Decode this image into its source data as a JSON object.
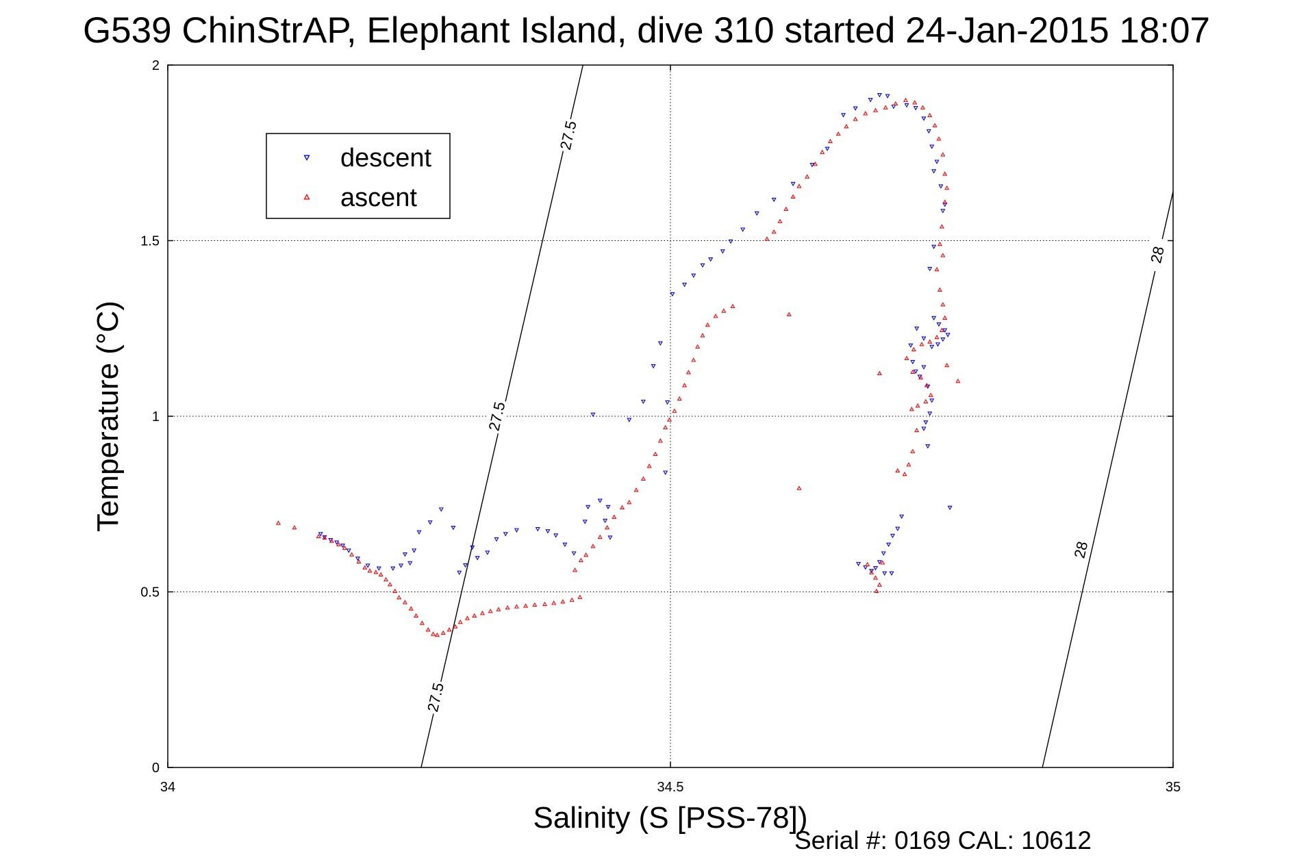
{
  "chart_data": {
    "type": "scatter",
    "title": "G539 ChinStrAP, Elephant Island, dive 310 started 24-Jan-2015 18:07",
    "xlabel": "Salinity (S [PSS-78])",
    "ylabel": "Temperature (°C)",
    "xlim": [
      34,
      35
    ],
    "ylim": [
      0,
      2
    ],
    "x_ticks": [
      34,
      34.5,
      35
    ],
    "x_tick_labels": [
      "34",
      "34.5",
      "35"
    ],
    "y_ticks": [
      0,
      0.5,
      1,
      1.5,
      2
    ],
    "y_tick_labels": [
      "0",
      "0.5",
      "1",
      "1.5",
      "2"
    ],
    "grid": true,
    "legend_position": "top-left",
    "footer": "Serial #: 0169 CAL: 10612",
    "series": [
      {
        "name": "descent",
        "color": "#0000ff",
        "marker": "triangle-down",
        "points": [
          [
            34.152,
            0.665
          ],
          [
            34.156,
            0.656
          ],
          [
            34.162,
            0.648
          ],
          [
            34.168,
            0.641
          ],
          [
            34.174,
            0.632
          ],
          [
            34.18,
            0.618
          ],
          [
            34.189,
            0.595
          ],
          [
            34.199,
            0.575
          ],
          [
            34.21,
            0.567
          ],
          [
            34.224,
            0.567
          ],
          [
            34.232,
            0.575
          ],
          [
            34.241,
            0.582
          ],
          [
            34.236,
            0.607
          ],
          [
            34.245,
            0.618
          ],
          [
            34.25,
            0.67
          ],
          [
            34.261,
            0.698
          ],
          [
            34.272,
            0.735
          ],
          [
            34.284,
            0.683
          ],
          [
            34.29,
            0.555
          ],
          [
            34.296,
            0.576
          ],
          [
            34.303,
            0.627
          ],
          [
            34.308,
            0.597
          ],
          [
            34.318,
            0.612
          ],
          [
            34.327,
            0.65
          ],
          [
            34.336,
            0.665
          ],
          [
            34.347,
            0.676
          ],
          [
            34.368,
            0.679
          ],
          [
            34.378,
            0.673
          ],
          [
            34.386,
            0.661
          ],
          [
            34.395,
            0.635
          ],
          [
            34.404,
            0.61
          ],
          [
            34.415,
            0.7
          ],
          [
            34.418,
            0.742
          ],
          [
            34.43,
            0.76
          ],
          [
            34.438,
            0.742
          ],
          [
            34.435,
            0.703
          ],
          [
            34.44,
            0.655
          ],
          [
            34.423,
            1.005
          ],
          [
            34.459,
            0.99
          ],
          [
            34.473,
            1.042
          ],
          [
            34.483,
            1.143
          ],
          [
            34.49,
            1.208
          ],
          [
            34.495,
            0.84
          ],
          [
            34.497,
            1.04
          ],
          [
            34.502,
            1.348
          ],
          [
            34.514,
            1.375
          ],
          [
            34.523,
            1.401
          ],
          [
            34.532,
            1.43
          ],
          [
            34.54,
            1.447
          ],
          [
            34.552,
            1.47
          ],
          [
            34.56,
            1.498
          ],
          [
            34.572,
            1.532
          ],
          [
            34.586,
            1.578
          ],
          [
            34.603,
            1.617
          ],
          [
            34.622,
            1.662
          ],
          [
            34.641,
            1.716
          ],
          [
            34.656,
            1.762
          ],
          [
            34.672,
            1.858
          ],
          [
            34.684,
            1.877
          ],
          [
            34.699,
            1.901
          ],
          [
            34.708,
            1.915
          ],
          [
            34.716,
            1.912
          ],
          [
            34.722,
            1.882
          ],
          [
            34.735,
            1.886
          ],
          [
            34.744,
            1.878
          ],
          [
            34.752,
            1.848
          ],
          [
            34.757,
            1.812
          ],
          [
            34.76,
            1.768
          ],
          [
            34.765,
            1.725
          ],
          [
            34.762,
            1.698
          ],
          [
            34.769,
            1.655
          ],
          [
            34.773,
            1.603
          ],
          [
            34.771,
            1.585
          ],
          [
            34.762,
            1.483
          ],
          [
            34.758,
            1.42
          ],
          [
            34.762,
            1.28
          ],
          [
            34.767,
            1.262
          ],
          [
            34.773,
            1.245
          ],
          [
            34.776,
            1.232
          ],
          [
            34.771,
            1.219
          ],
          [
            34.766,
            1.205
          ],
          [
            34.76,
            1.198
          ],
          [
            34.752,
            1.222
          ],
          [
            34.745,
            1.25
          ],
          [
            34.739,
            1.202
          ],
          [
            34.741,
            1.155
          ],
          [
            34.744,
            1.128
          ],
          [
            34.748,
            1.113
          ],
          [
            34.752,
            1.14
          ],
          [
            34.756,
            1.085
          ],
          [
            34.76,
            1.045
          ],
          [
            34.758,
            1.008
          ],
          [
            34.754,
            0.983
          ],
          [
            34.752,
            0.965
          ],
          [
            34.756,
            0.915
          ],
          [
            34.778,
            0.74
          ],
          [
            34.73,
            0.715
          ],
          [
            34.726,
            0.68
          ],
          [
            34.721,
            0.66
          ],
          [
            34.717,
            0.635
          ],
          [
            34.712,
            0.61
          ],
          [
            34.708,
            0.585
          ],
          [
            34.704,
            0.568
          ],
          [
            34.7,
            0.56
          ],
          [
            34.694,
            0.57
          ],
          [
            34.687,
            0.58
          ],
          [
            34.713,
            0.553
          ],
          [
            34.72,
            0.553
          ]
        ]
      },
      {
        "name": "ascent",
        "color": "#ff0000",
        "marker": "triangle-up",
        "points": [
          [
            34.11,
            0.696
          ],
          [
            34.126,
            0.683
          ],
          [
            34.15,
            0.658
          ],
          [
            34.156,
            0.654
          ],
          [
            34.163,
            0.645
          ],
          [
            34.17,
            0.635
          ],
          [
            34.176,
            0.625
          ],
          [
            34.183,
            0.606
          ],
          [
            34.19,
            0.586
          ],
          [
            34.196,
            0.569
          ],
          [
            34.201,
            0.56
          ],
          [
            34.207,
            0.556
          ],
          [
            34.212,
            0.549
          ],
          [
            34.217,
            0.535
          ],
          [
            34.221,
            0.521
          ],
          [
            34.226,
            0.502
          ],
          [
            34.23,
            0.484
          ],
          [
            34.236,
            0.47
          ],
          [
            34.242,
            0.452
          ],
          [
            34.247,
            0.432
          ],
          [
            34.253,
            0.411
          ],
          [
            34.259,
            0.392
          ],
          [
            34.264,
            0.38
          ],
          [
            34.268,
            0.377
          ],
          [
            34.274,
            0.383
          ],
          [
            34.28,
            0.392
          ],
          [
            34.286,
            0.401
          ],
          [
            34.291,
            0.414
          ],
          [
            34.298,
            0.425
          ],
          [
            34.305,
            0.432
          ],
          [
            34.313,
            0.439
          ],
          [
            34.321,
            0.445
          ],
          [
            34.329,
            0.45
          ],
          [
            34.338,
            0.455
          ],
          [
            34.347,
            0.458
          ],
          [
            34.356,
            0.46
          ],
          [
            34.365,
            0.463
          ],
          [
            34.375,
            0.465
          ],
          [
            34.384,
            0.468
          ],
          [
            34.393,
            0.472
          ],
          [
            34.402,
            0.477
          ],
          [
            34.41,
            0.485
          ],
          [
            34.405,
            0.562
          ],
          [
            34.411,
            0.59
          ],
          [
            34.416,
            0.605
          ],
          [
            34.423,
            0.63
          ],
          [
            34.43,
            0.656
          ],
          [
            34.437,
            0.683
          ],
          [
            34.444,
            0.713
          ],
          [
            34.452,
            0.74
          ],
          [
            34.459,
            0.755
          ],
          [
            34.466,
            0.79
          ],
          [
            34.473,
            0.822
          ],
          [
            34.479,
            0.858
          ],
          [
            34.485,
            0.892
          ],
          [
            34.49,
            0.93
          ],
          [
            34.495,
            0.968
          ],
          [
            34.499,
            0.99
          ],
          [
            34.504,
            1.015
          ],
          [
            34.509,
            1.05
          ],
          [
            34.514,
            1.088
          ],
          [
            34.518,
            1.125
          ],
          [
            34.523,
            1.16
          ],
          [
            34.527,
            1.198
          ],
          [
            34.532,
            1.23
          ],
          [
            34.537,
            1.26
          ],
          [
            34.545,
            1.285
          ],
          [
            34.553,
            1.3
          ],
          [
            34.562,
            1.313
          ],
          [
            34.596,
            1.505
          ],
          [
            34.603,
            1.525
          ],
          [
            34.609,
            1.555
          ],
          [
            34.615,
            1.59
          ],
          [
            34.622,
            1.625
          ],
          [
            34.628,
            1.655
          ],
          [
            34.636,
            1.682
          ],
          [
            34.644,
            1.718
          ],
          [
            34.651,
            1.752
          ],
          [
            34.659,
            1.783
          ],
          [
            34.667,
            1.804
          ],
          [
            34.675,
            1.825
          ],
          [
            34.684,
            1.846
          ],
          [
            34.694,
            1.862
          ],
          [
            34.704,
            1.871
          ],
          [
            34.714,
            1.879
          ],
          [
            34.724,
            1.89
          ],
          [
            34.734,
            1.9
          ],
          [
            34.743,
            1.893
          ],
          [
            34.751,
            1.879
          ],
          [
            34.758,
            1.857
          ],
          [
            34.763,
            1.828
          ],
          [
            34.767,
            1.79
          ],
          [
            34.771,
            1.745
          ],
          [
            34.773,
            1.69
          ],
          [
            34.775,
            1.65
          ],
          [
            34.773,
            1.61
          ],
          [
            34.77,
            1.54
          ],
          [
            34.768,
            1.49
          ],
          [
            34.771,
            1.458
          ],
          [
            34.765,
            1.418
          ],
          [
            34.768,
            1.36
          ],
          [
            34.771,
            1.318
          ],
          [
            34.773,
            1.28
          ],
          [
            34.77,
            1.245
          ],
          [
            34.765,
            1.225
          ],
          [
            34.758,
            1.212
          ],
          [
            34.75,
            1.205
          ],
          [
            34.742,
            1.19
          ],
          [
            34.735,
            1.165
          ],
          [
            34.741,
            1.126
          ],
          [
            34.749,
            1.11
          ],
          [
            34.755,
            1.088
          ],
          [
            34.759,
            1.06
          ],
          [
            34.754,
            1.042
          ],
          [
            34.746,
            1.03
          ],
          [
            34.74,
            1.02
          ],
          [
            34.745,
            0.96
          ],
          [
            34.741,
            0.9
          ],
          [
            34.737,
            0.862
          ],
          [
            34.733,
            0.835
          ],
          [
            34.726,
            0.845
          ],
          [
            34.775,
            1.145
          ],
          [
            34.786,
            1.1
          ],
          [
            34.708,
            1.122
          ],
          [
            34.618,
            1.29
          ],
          [
            34.628,
            0.795
          ],
          [
            34.696,
            0.578
          ],
          [
            34.7,
            0.555
          ],
          [
            34.704,
            0.54
          ],
          [
            34.708,
            0.52
          ],
          [
            34.705,
            0.502
          ],
          [
            34.711,
            0.583
          ]
        ]
      }
    ],
    "contours": [
      {
        "label": "27.5",
        "line": [
          [
            34.252,
            0.0
          ],
          [
            34.413,
            2.0
          ]
        ],
        "label_positions": [
          [
            34.266,
            0.2
          ],
          [
            34.327,
            1.0
          ],
          [
            34.398,
            1.8
          ]
        ]
      },
      {
        "label": "28",
        "line": [
          [
            34.87,
            0.0
          ],
          [
            35.0,
            1.64
          ]
        ],
        "label_positions": [
          [
            34.908,
            0.62
          ],
          [
            34.984,
            1.46
          ]
        ]
      }
    ]
  }
}
